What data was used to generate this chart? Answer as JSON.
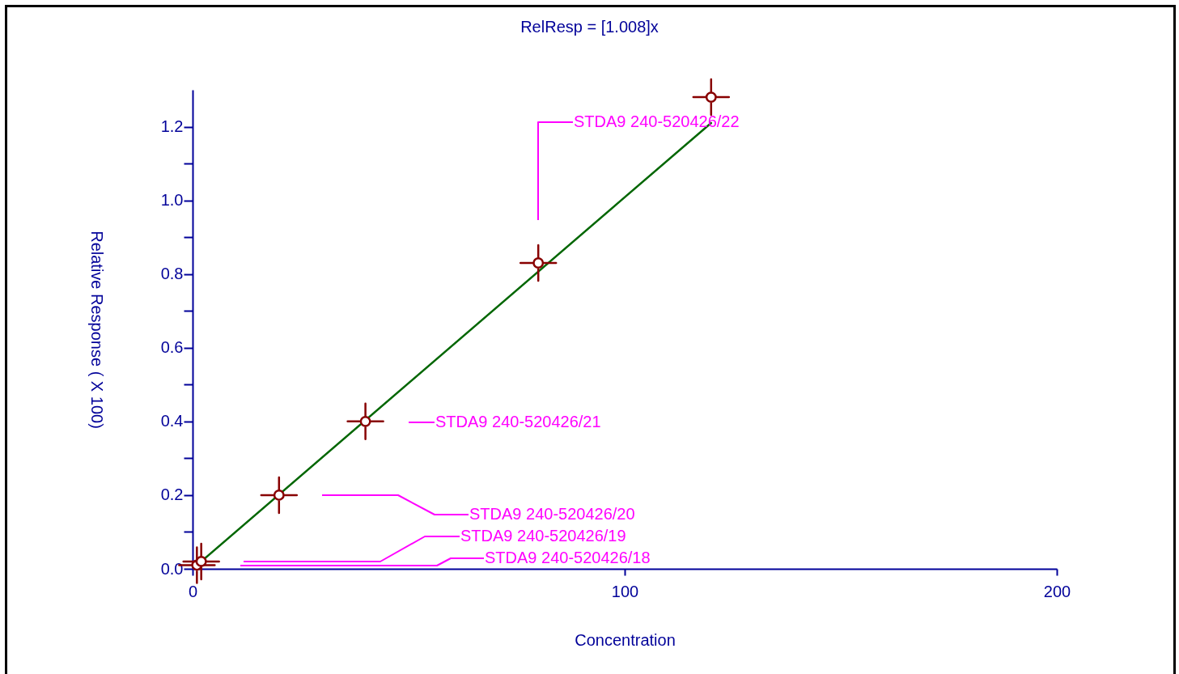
{
  "chart_data": {
    "type": "scatter",
    "title": "RelResp = [1.008]x",
    "xlabel": "Concentration",
    "ylabel": "Relative Response ( X 100)",
    "series": [
      {
        "color": "#880000",
        "x": [
          1,
          2,
          20,
          40,
          80,
          120
        ],
        "values": [
          0.01,
          0.02,
          0.2,
          0.4,
          0.83,
          1.28
        ]
      },
      {
        "type": "line",
        "color": "#006600",
        "x": [
          1,
          120
        ],
        "values": [
          0.01,
          1.21
        ],
        "marker": "none"
      }
    ],
    "xlim": [
      0,
      200
    ],
    "xticks": [
      0,
      100,
      200
    ],
    "ylim": [
      0,
      1.3
    ],
    "yticks": [
      {
        "value": 0,
        "label": "0.0"
      },
      {
        "value": 0.1,
        "label": null
      },
      0.2,
      {
        "value": 0.3,
        "label": null
      },
      0.4,
      {
        "value": 0.5,
        "label": null
      },
      0.6,
      {
        "value": 0.7,
        "label": null
      },
      0.8,
      {
        "value": 0.9,
        "label": null
      },
      {
        "value": 1,
        "label": "1.0"
      },
      {
        "value": 1.1,
        "label": null
      },
      1.2
    ],
    "marker": "circle",
    "annotations": [
      "STDA9 240-520426/18",
      "STDA9 240-520426/19",
      "STDA9 240-520426/20",
      "STDA9 240-520426/21",
      "STDA9 240-520426/22"
    ]
  }
}
